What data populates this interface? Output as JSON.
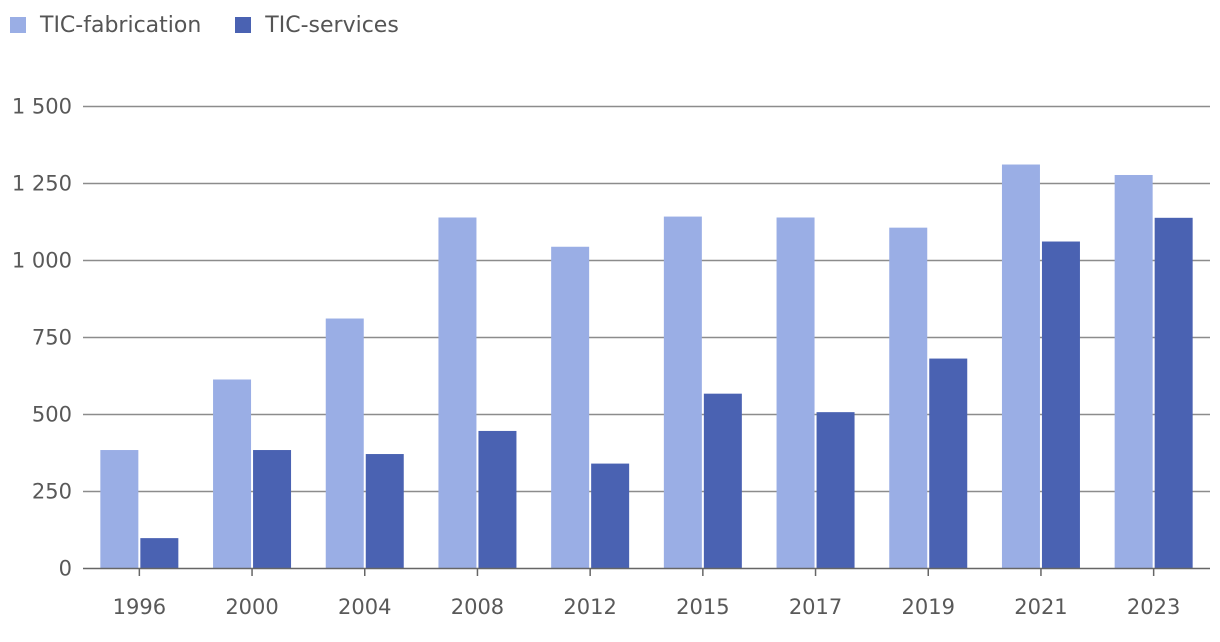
{
  "chart_data": {
    "type": "bar",
    "title": "",
    "xlabel": "",
    "ylabel": "",
    "categories": [
      "1996",
      "2000",
      "2004",
      "2008",
      "2012",
      "2015",
      "2017",
      "2019",
      "2021",
      "2023"
    ],
    "series": [
      {
        "name": "TIC-fabrication",
        "color": "#9aaee5",
        "values": [
          383,
          612,
          810,
          1138,
          1043,
          1141,
          1138,
          1105,
          1310,
          1276
        ]
      },
      {
        "name": "TIC-services",
        "color": "#4a62b2",
        "values": [
          97,
          383,
          370,
          445,
          339,
          566,
          506,
          680,
          1060,
          1137
        ]
      }
    ],
    "ylim": [
      0,
      1500
    ],
    "yticks": [
      0,
      250,
      500,
      750,
      1000,
      1250,
      1500
    ],
    "ytick_labels": [
      "0",
      "250",
      "500",
      "750",
      "1 000",
      "1 250",
      "1 500"
    ],
    "grid": true,
    "legend_position": "top-left"
  }
}
